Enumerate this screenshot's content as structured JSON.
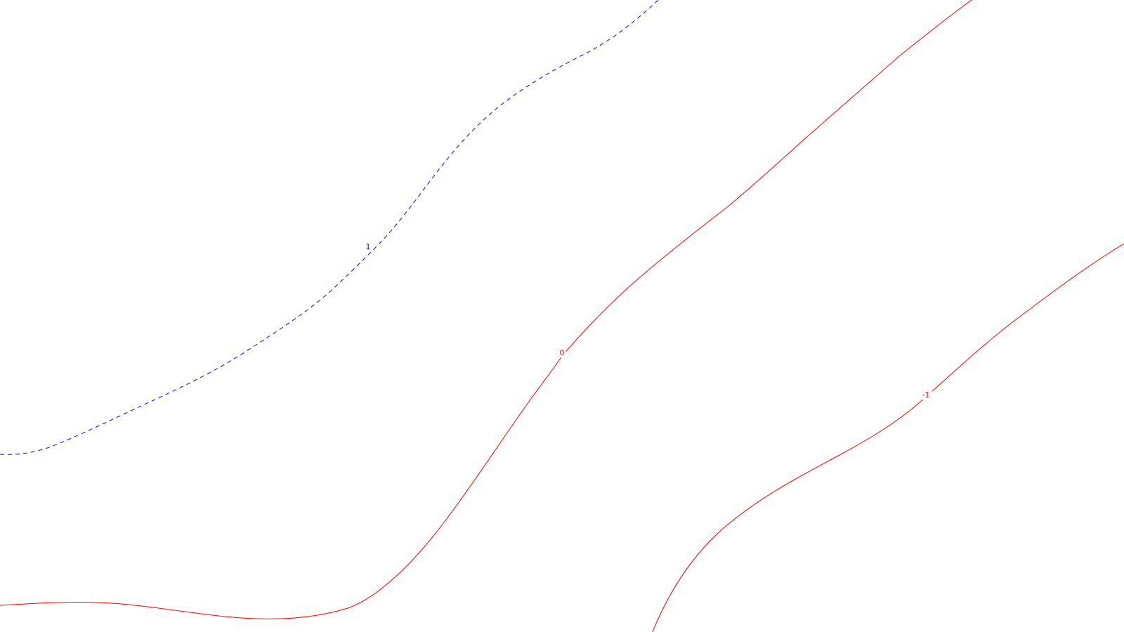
{
  "chart_data": {
    "type": "contour",
    "colors": {
      "positive": "#0000ff",
      "non_positive": "#ff0000",
      "background": "#ffffff"
    },
    "levels": [
      {
        "id": "level-1",
        "level": 1,
        "label": "1",
        "color": "#0000ff",
        "style": "dashed"
      },
      {
        "id": "level-0",
        "level": 0,
        "label": "0",
        "color": "#ff0000",
        "style": "solid"
      },
      {
        "id": "level-neg1",
        "level": -1,
        "label": "-1",
        "color": "#ff0000",
        "style": "solid"
      }
    ]
  }
}
